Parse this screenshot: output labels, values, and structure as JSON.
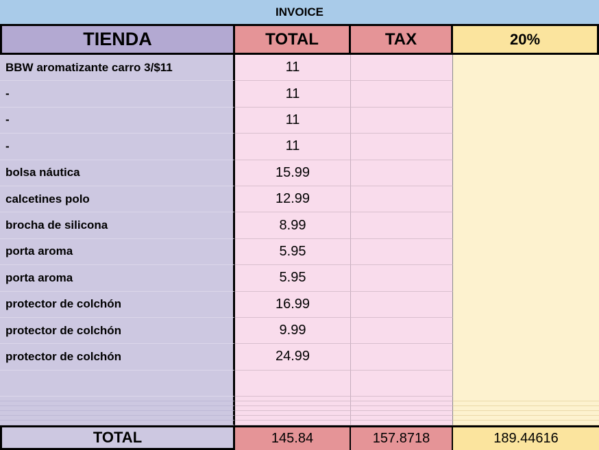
{
  "title": "INVOICE",
  "columns": {
    "tienda": "TIENDA",
    "total": "TOTAL",
    "tax": "TAX",
    "pct": "20%"
  },
  "rows": [
    {
      "tienda": "BBW aromatizante carro 3/$11",
      "total": "11",
      "tax": "",
      "pct": ""
    },
    {
      "tienda": "-",
      "total": "11",
      "tax": "",
      "pct": ""
    },
    {
      "tienda": "-",
      "total": "11",
      "tax": "",
      "pct": ""
    },
    {
      "tienda": "-",
      "total": "11",
      "tax": "",
      "pct": ""
    },
    {
      "tienda": "bolsa náutica",
      "total": "15.99",
      "tax": "",
      "pct": ""
    },
    {
      "tienda": "calcetines polo",
      "total": "12.99",
      "tax": "",
      "pct": ""
    },
    {
      "tienda": "brocha de silicona",
      "total": "8.99",
      "tax": "",
      "pct": ""
    },
    {
      "tienda": "porta aroma",
      "total": "5.95",
      "tax": "",
      "pct": ""
    },
    {
      "tienda": "porta aroma",
      "total": "5.95",
      "tax": "",
      "pct": ""
    },
    {
      "tienda": "protector de colchón",
      "total": "16.99",
      "tax": "",
      "pct": ""
    },
    {
      "tienda": "protector de colchón",
      "total": "9.99",
      "tax": "",
      "pct": ""
    },
    {
      "tienda": "protector de colchón",
      "total": "24.99",
      "tax": "",
      "pct": ""
    },
    {
      "tienda": "",
      "total": "",
      "tax": "",
      "pct": ""
    }
  ],
  "empty_thin_rows": 6,
  "footer": {
    "label": "TOTAL",
    "total": "145.84",
    "tax": "157.8718",
    "pct": "189.44616"
  },
  "colors": {
    "title_bar": "#a9cbe9",
    "header_tienda": "#b3a9d2",
    "header_total_tax": "#e59497",
    "header_pct": "#fbe49e",
    "cell_tienda": "#cdc8e1",
    "cell_total_tax": "#f9dcec",
    "cell_pct": "#fdf2cf",
    "footer_value": "#e59497",
    "footer_pct": "#fbe49e",
    "grid_border": "#000000"
  }
}
